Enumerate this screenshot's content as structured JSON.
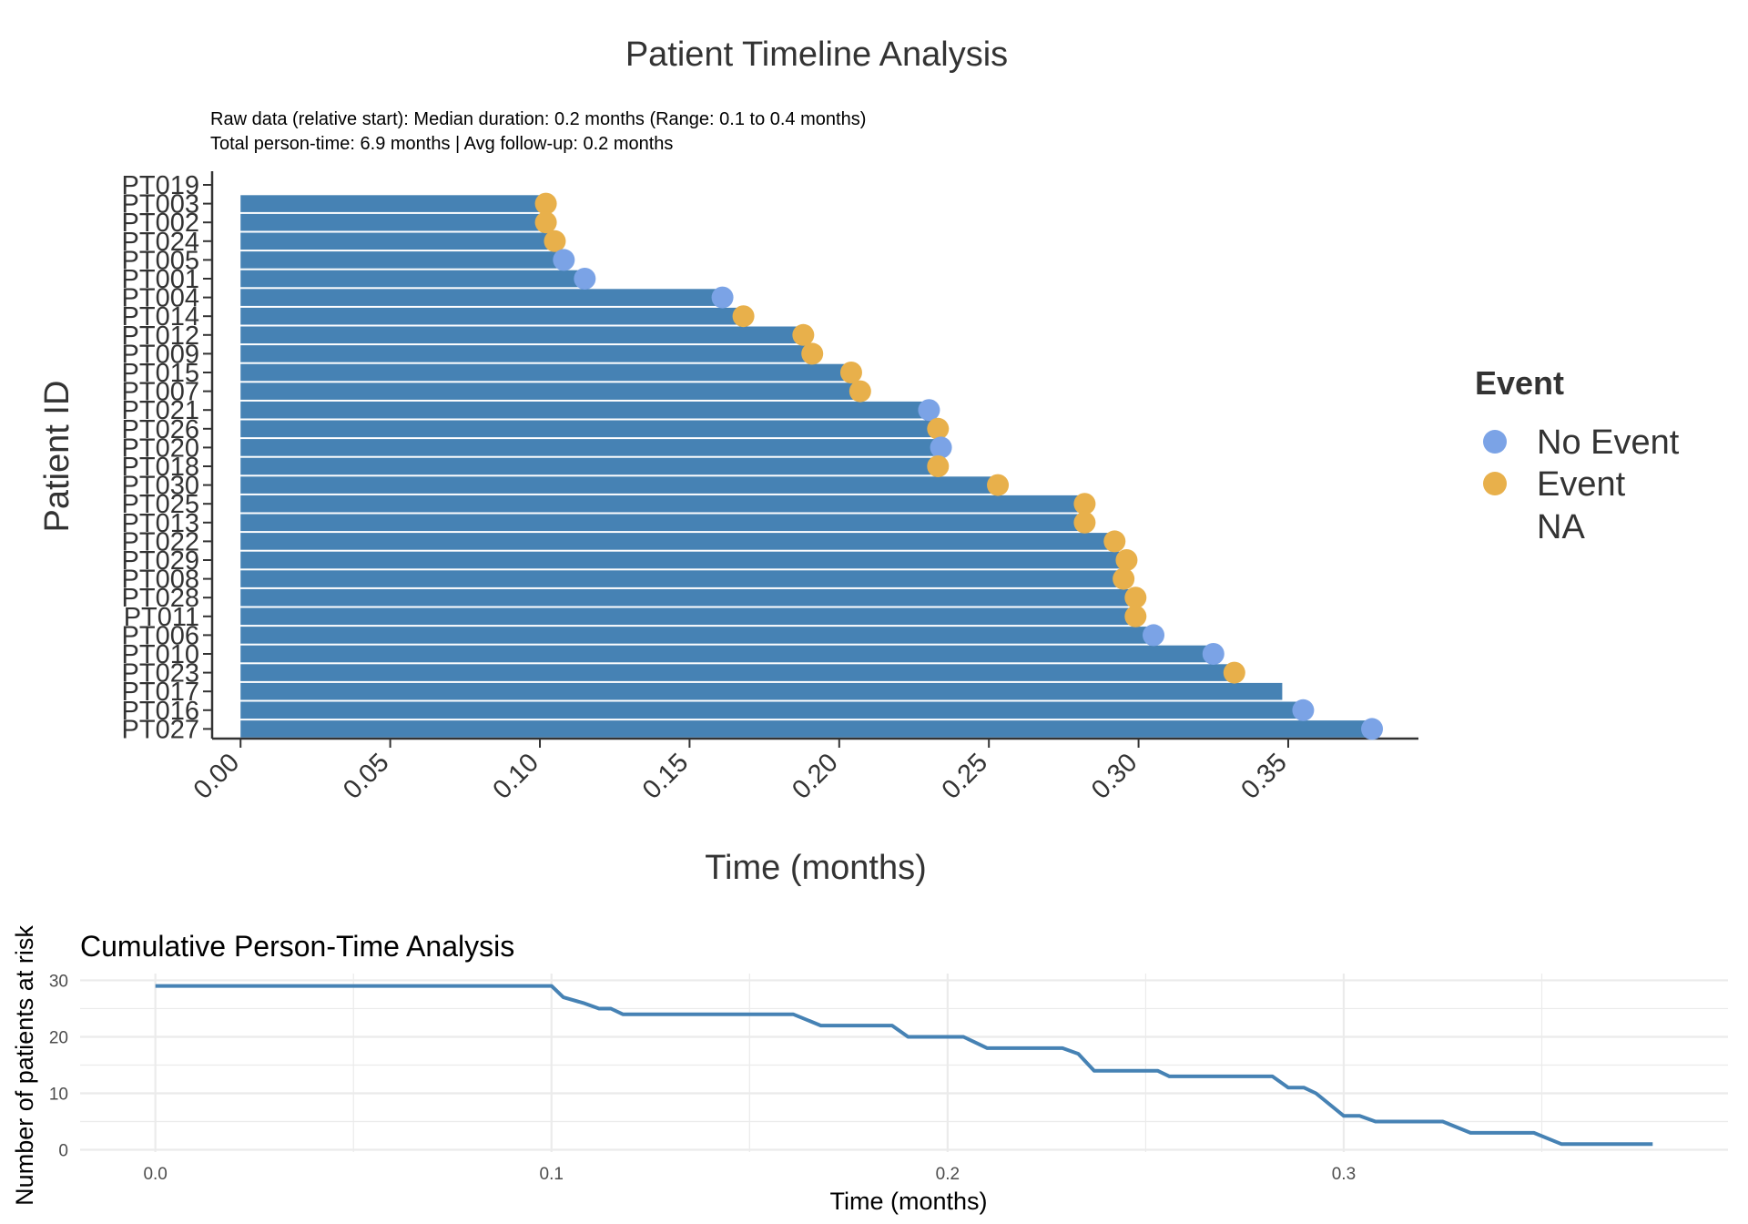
{
  "colors": {
    "bar": "#4682B4",
    "no_event": "#7BA3E6",
    "event": "#E8B04B",
    "axis": "#333333",
    "grid": "#EBEBEB",
    "text": "#333333"
  },
  "chart_data": [
    {
      "type": "bar",
      "orientation": "horizontal",
      "title": "Patient Timeline Analysis",
      "subtitle_lines": [
        "Raw data (relative start): Median duration: 0.2 months (Range: 0.1 to 0.4 months)",
        "Total person-time: 6.9 months | Avg follow-up: 0.2 months"
      ],
      "xlabel": "Time (months)",
      "ylabel": "Patient ID",
      "xlim": [
        -0.0095,
        0.3935
      ],
      "x_ticks": [
        "0.00",
        "0.05",
        "0.10",
        "0.15",
        "0.20",
        "0.25",
        "0.30",
        "0.35"
      ],
      "grid": false,
      "legend": {
        "title": "Event",
        "position": "right",
        "entries": [
          {
            "label": "No Event",
            "color_key": "no_event"
          },
          {
            "label": "Event",
            "color_key": "event"
          },
          {
            "label": "NA",
            "color_key": null
          }
        ]
      },
      "patients": [
        {
          "id": "PT019",
          "duration": null,
          "event": null
        },
        {
          "id": "PT003",
          "duration": 0.102,
          "event": "Event"
        },
        {
          "id": "PT002",
          "duration": 0.102,
          "event": "Event"
        },
        {
          "id": "PT024",
          "duration": 0.105,
          "event": "Event"
        },
        {
          "id": "PT005",
          "duration": 0.108,
          "event": "No Event"
        },
        {
          "id": "PT001",
          "duration": 0.115,
          "event": "No Event"
        },
        {
          "id": "PT004",
          "duration": 0.161,
          "event": "No Event"
        },
        {
          "id": "PT014",
          "duration": 0.168,
          "event": "Event"
        },
        {
          "id": "PT012",
          "duration": 0.188,
          "event": "Event"
        },
        {
          "id": "PT009",
          "duration": 0.191,
          "event": "Event"
        },
        {
          "id": "PT015",
          "duration": 0.204,
          "event": "Event"
        },
        {
          "id": "PT007",
          "duration": 0.207,
          "event": "Event"
        },
        {
          "id": "PT021",
          "duration": 0.23,
          "event": "No Event"
        },
        {
          "id": "PT026",
          "duration": 0.233,
          "event": "Event"
        },
        {
          "id": "PT020",
          "duration": 0.234,
          "event": "No Event"
        },
        {
          "id": "PT018",
          "duration": 0.233,
          "event": "Event"
        },
        {
          "id": "PT030",
          "duration": 0.253,
          "event": "Event"
        },
        {
          "id": "PT025",
          "duration": 0.282,
          "event": "Event"
        },
        {
          "id": "PT013",
          "duration": 0.282,
          "event": "Event"
        },
        {
          "id": "PT022",
          "duration": 0.292,
          "event": "Event"
        },
        {
          "id": "PT029",
          "duration": 0.296,
          "event": "Event"
        },
        {
          "id": "PT008",
          "duration": 0.295,
          "event": "Event"
        },
        {
          "id": "PT028",
          "duration": 0.299,
          "event": "Event"
        },
        {
          "id": "PT011",
          "duration": 0.299,
          "event": "Event"
        },
        {
          "id": "PT006",
          "duration": 0.305,
          "event": "No Event"
        },
        {
          "id": "PT010",
          "duration": 0.325,
          "event": "No Event"
        },
        {
          "id": "PT023",
          "duration": 0.332,
          "event": "Event"
        },
        {
          "id": "PT017",
          "duration": 0.348,
          "event": null
        },
        {
          "id": "PT016",
          "duration": 0.355,
          "event": "No Event"
        },
        {
          "id": "PT027",
          "duration": 0.378,
          "event": "No Event"
        }
      ]
    },
    {
      "type": "line",
      "title": "Cumulative Person-Time Analysis",
      "xlabel": "Time (months)",
      "ylabel": "Number of patients at risk",
      "xlim": [
        -0.019,
        0.397
      ],
      "ylim": [
        0,
        30
      ],
      "x_ticks": [
        "0.0",
        "0.1",
        "0.2",
        "0.3"
      ],
      "y_ticks": [
        "0",
        "10",
        "20",
        "30"
      ],
      "grid": true,
      "series": [
        {
          "x": [
            0.0,
            0.1,
            0.103,
            0.108,
            0.112,
            0.115,
            0.118,
            0.161,
            0.168,
            0.186,
            0.19,
            0.204,
            0.21,
            0.229,
            0.233,
            0.237,
            0.253,
            0.256,
            0.282,
            0.286,
            0.29,
            0.293,
            0.3,
            0.304,
            0.308,
            0.325,
            0.332,
            0.348,
            0.355,
            0.378
          ],
          "y": [
            29,
            29,
            27,
            26,
            25,
            25,
            24,
            24,
            22,
            22,
            20,
            20,
            18,
            18,
            17,
            14,
            14,
            13,
            13,
            11,
            11,
            10,
            6,
            6,
            5,
            5,
            3,
            3,
            1,
            1
          ]
        }
      ]
    }
  ]
}
